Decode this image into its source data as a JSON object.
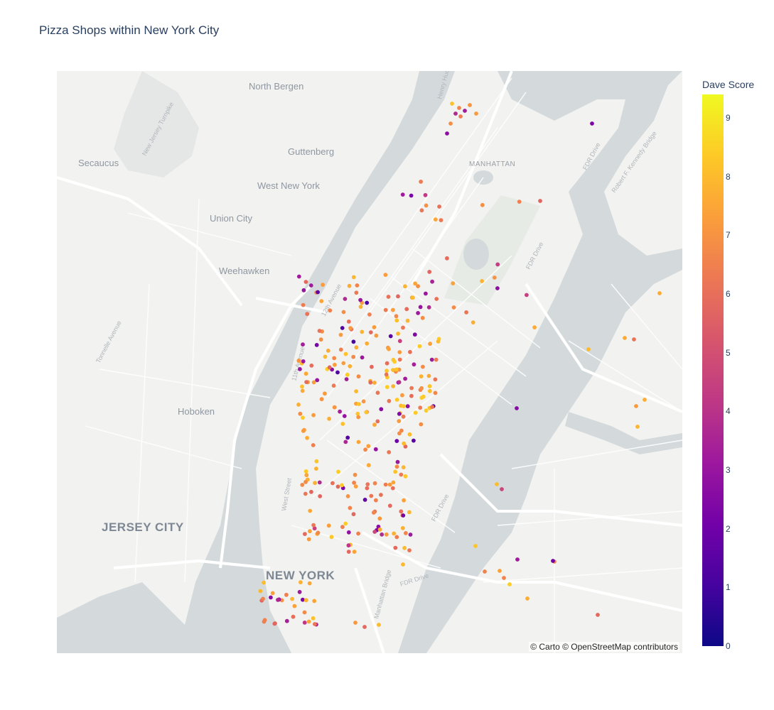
{
  "title": "Pizza Shops within New York City",
  "colorbar": {
    "title": "Dave Score",
    "min": 0,
    "max": 9.4,
    "ticks": [
      "0",
      "1",
      "2",
      "3",
      "4",
      "5",
      "6",
      "7",
      "8",
      "9"
    ]
  },
  "attribution": "© Carto © OpenStreetMap contributors",
  "map": {
    "basemap": "carto-positron",
    "labels": [
      {
        "name": "north-bergen",
        "text": "North Bergen"
      },
      {
        "name": "guttenberg",
        "text": "Guttenberg"
      },
      {
        "name": "secaucus",
        "text": "Secaucus"
      },
      {
        "name": "west-new-york",
        "text": "West New York"
      },
      {
        "name": "union-city",
        "text": "Union City"
      },
      {
        "name": "weehawken",
        "text": "Weehawken"
      },
      {
        "name": "hoboken",
        "text": "Hoboken"
      },
      {
        "name": "jersey-city",
        "text": "JERSEY CITY"
      },
      {
        "name": "new-york",
        "text": "NEW YORK"
      },
      {
        "name": "manhattan",
        "text": "MANHATTAN"
      },
      {
        "name": "fdr-drive-1",
        "text": "FDR Drive"
      },
      {
        "name": "fdr-drive-2",
        "text": "FDR Drive"
      },
      {
        "name": "fdr-drive-3",
        "text": "FDR Drive"
      },
      {
        "name": "fdr-drive-4",
        "text": "FDR Drive"
      },
      {
        "name": "12th-avenue",
        "text": "12th Avenue"
      },
      {
        "name": "11th-avenue",
        "text": "11th Avenue"
      },
      {
        "name": "west-street",
        "text": "West Street"
      },
      {
        "name": "manhattan-bridge",
        "text": "Manhattan Bridge"
      },
      {
        "name": "tonnelle-avenue",
        "text": "Tonnelle Avenue"
      },
      {
        "name": "new-jersey-turnpike",
        "text": "New Jersey Turnpike"
      },
      {
        "name": "rfk-bridge",
        "text": "Robert F. Kennedy Bridge"
      },
      {
        "name": "henry-hudson",
        "text": "Henry Hud"
      }
    ]
  }
}
